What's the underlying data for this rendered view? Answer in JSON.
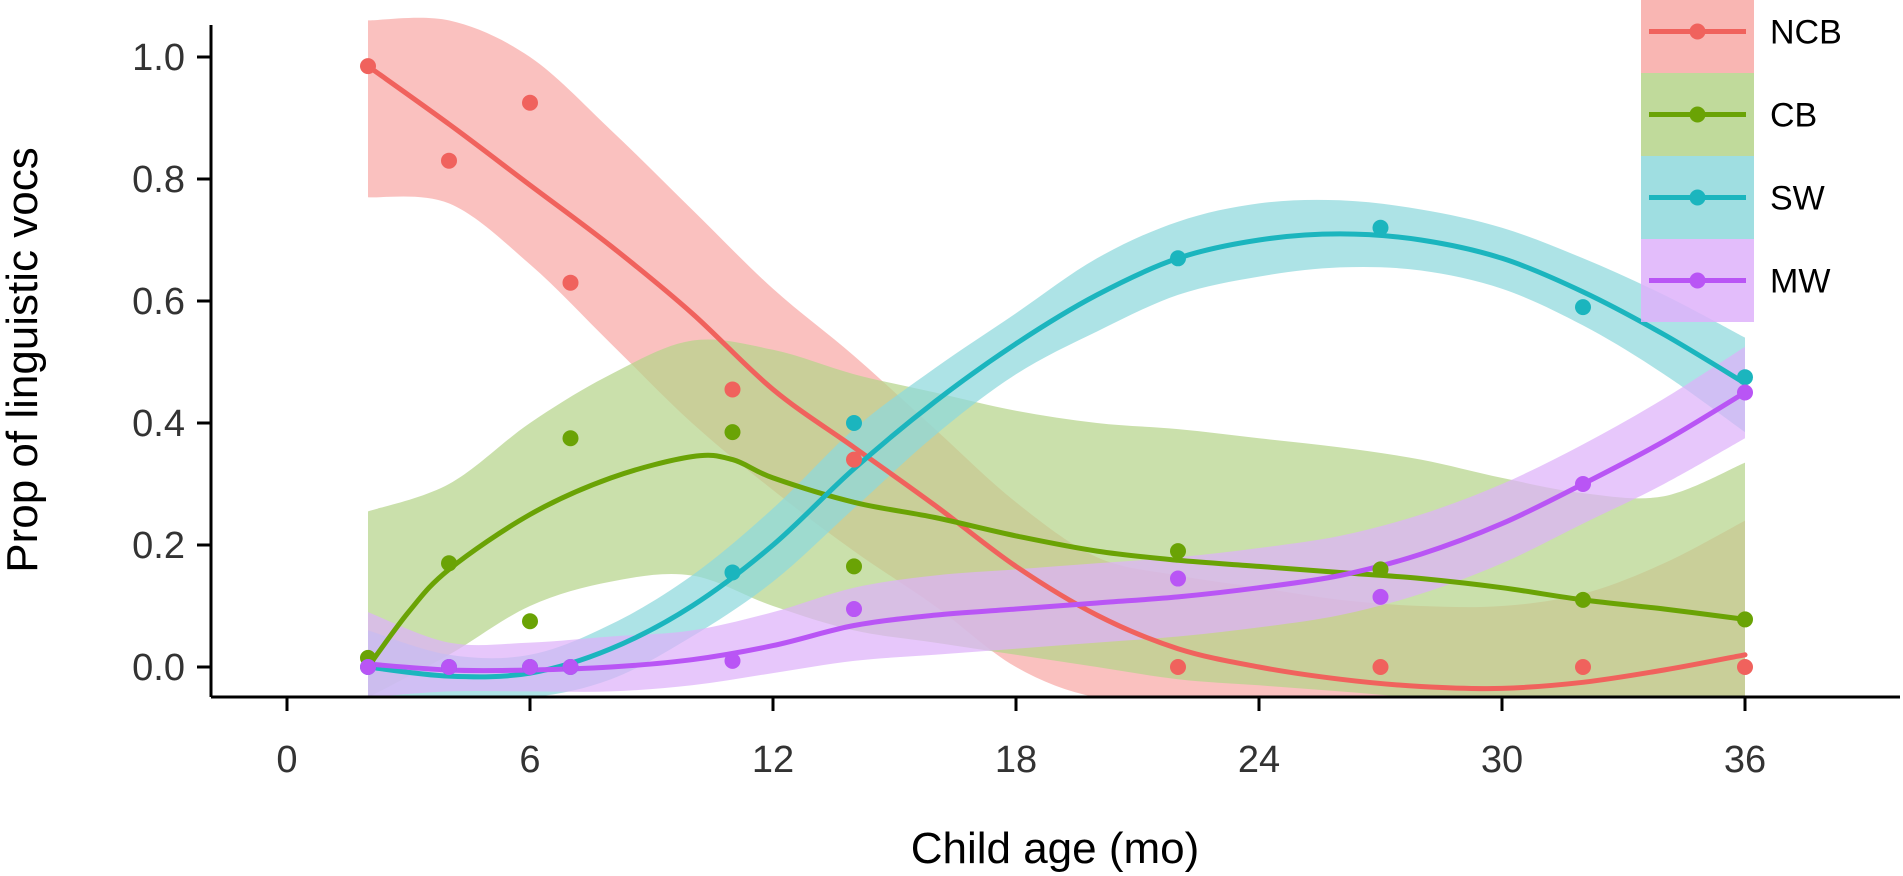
{
  "chart_data": {
    "type": "line",
    "xlabel": "Child age (mo)",
    "ylabel": "Prop of linguistic vocs",
    "xlim": [
      -6,
      40
    ],
    "ylim": [
      -0.05,
      1.05
    ],
    "x_ticks": [
      0,
      6,
      12,
      18,
      24,
      30,
      36
    ],
    "y_ticks": [
      0.0,
      0.2,
      0.4,
      0.6,
      0.8,
      1.0
    ],
    "x_tick_labels": [
      "0",
      "6",
      "12",
      "18",
      "24",
      "30",
      "36"
    ],
    "y_tick_labels": [
      "0.0",
      "0.2",
      "0.4",
      "0.6",
      "0.8",
      "1.0"
    ],
    "grid": false,
    "legend_position": "top-right",
    "series": [
      {
        "name": "NCB",
        "color": "#F0625D",
        "band_color": "#F8A9A6",
        "points": [
          [
            2,
            0.985
          ],
          [
            4,
            0.83
          ],
          [
            6,
            0.925
          ],
          [
            7,
            0.63
          ],
          [
            11,
            0.455
          ],
          [
            14,
            0.34
          ],
          [
            22,
            0.0
          ],
          [
            27,
            0.0
          ],
          [
            32,
            0.0
          ],
          [
            36,
            0.0
          ]
        ],
        "fit": [
          [
            2,
            0.985
          ],
          [
            4,
            0.89
          ],
          [
            6,
            0.79
          ],
          [
            8,
            0.69
          ],
          [
            10,
            0.58
          ],
          [
            12,
            0.455
          ],
          [
            14,
            0.36
          ],
          [
            16,
            0.265
          ],
          [
            18,
            0.165
          ],
          [
            20,
            0.085
          ],
          [
            22,
            0.03
          ],
          [
            24,
            0.0
          ],
          [
            26,
            -0.02
          ],
          [
            28,
            -0.032
          ],
          [
            30,
            -0.035
          ],
          [
            32,
            -0.025
          ],
          [
            34,
            -0.005
          ],
          [
            36,
            0.02
          ]
        ],
        "band_upper": [
          [
            2,
            1.06
          ],
          [
            4,
            1.06
          ],
          [
            6,
            1.0
          ],
          [
            8,
            0.88
          ],
          [
            10,
            0.75
          ],
          [
            12,
            0.62
          ],
          [
            14,
            0.51
          ],
          [
            16,
            0.39
          ],
          [
            18,
            0.27
          ],
          [
            20,
            0.18
          ],
          [
            22,
            0.15
          ],
          [
            24,
            0.13
          ],
          [
            26,
            0.11
          ],
          [
            28,
            0.1
          ],
          [
            30,
            0.1
          ],
          [
            32,
            0.12
          ],
          [
            34,
            0.17
          ],
          [
            36,
            0.24
          ]
        ],
        "band_lower": [
          [
            2,
            0.77
          ],
          [
            4,
            0.76
          ],
          [
            6,
            0.66
          ],
          [
            8,
            0.53
          ],
          [
            10,
            0.4
          ],
          [
            12,
            0.29
          ],
          [
            14,
            0.19
          ],
          [
            16,
            0.1
          ],
          [
            18,
            0.0
          ],
          [
            20,
            -0.05
          ],
          [
            22,
            -0.05
          ],
          [
            24,
            -0.05
          ],
          [
            26,
            -0.05
          ],
          [
            28,
            -0.05
          ],
          [
            30,
            -0.05
          ],
          [
            32,
            -0.05
          ],
          [
            34,
            -0.05
          ],
          [
            36,
            -0.05
          ]
        ]
      },
      {
        "name": "CB",
        "color": "#6AA305",
        "band_color": "#B5D48A",
        "points": [
          [
            2,
            0.015
          ],
          [
            4,
            0.17
          ],
          [
            6,
            0.075
          ],
          [
            7,
            0.375
          ],
          [
            11,
            0.385
          ],
          [
            14,
            0.165
          ],
          [
            22,
            0.19
          ],
          [
            27,
            0.16
          ],
          [
            32,
            0.11
          ],
          [
            36,
            0.078
          ]
        ],
        "fit": [
          [
            2,
            0.0
          ],
          [
            3,
            0.09
          ],
          [
            4,
            0.16
          ],
          [
            6,
            0.25
          ],
          [
            8,
            0.31
          ],
          [
            10,
            0.345
          ],
          [
            11,
            0.34
          ],
          [
            12,
            0.31
          ],
          [
            14,
            0.27
          ],
          [
            16,
            0.245
          ],
          [
            18,
            0.215
          ],
          [
            20,
            0.19
          ],
          [
            22,
            0.175
          ],
          [
            24,
            0.165
          ],
          [
            26,
            0.155
          ],
          [
            28,
            0.145
          ],
          [
            30,
            0.13
          ],
          [
            32,
            0.11
          ],
          [
            34,
            0.095
          ],
          [
            36,
            0.078
          ]
        ],
        "band_upper": [
          [
            2,
            0.255
          ],
          [
            4,
            0.3
          ],
          [
            6,
            0.4
          ],
          [
            8,
            0.48
          ],
          [
            10,
            0.535
          ],
          [
            12,
            0.52
          ],
          [
            14,
            0.48
          ],
          [
            16,
            0.45
          ],
          [
            18,
            0.42
          ],
          [
            20,
            0.4
          ],
          [
            22,
            0.39
          ],
          [
            24,
            0.375
          ],
          [
            26,
            0.36
          ],
          [
            28,
            0.34
          ],
          [
            30,
            0.31
          ],
          [
            32,
            0.285
          ],
          [
            34,
            0.28
          ],
          [
            36,
            0.335
          ]
        ],
        "band_lower": [
          [
            2,
            -0.05
          ],
          [
            4,
            0.02
          ],
          [
            6,
            0.1
          ],
          [
            8,
            0.14
          ],
          [
            10,
            0.15
          ],
          [
            12,
            0.1
          ],
          [
            14,
            0.06
          ],
          [
            16,
            0.04
          ],
          [
            18,
            0.02
          ],
          [
            20,
            0.0
          ],
          [
            22,
            -0.02
          ],
          [
            24,
            -0.03
          ],
          [
            26,
            -0.04
          ],
          [
            28,
            -0.05
          ],
          [
            30,
            -0.05
          ],
          [
            32,
            -0.05
          ],
          [
            34,
            -0.05
          ],
          [
            36,
            -0.05
          ]
        ]
      },
      {
        "name": "SW",
        "color": "#1BB5BE",
        "band_color": "#8ED8DC",
        "points": [
          [
            2,
            0.0
          ],
          [
            4,
            0.0
          ],
          [
            6,
            0.0
          ],
          [
            7,
            0.0
          ],
          [
            11,
            0.155
          ],
          [
            14,
            0.4
          ],
          [
            22,
            0.67
          ],
          [
            27,
            0.72
          ],
          [
            32,
            0.59
          ],
          [
            36,
            0.475
          ]
        ],
        "fit": [
          [
            2,
            0.0
          ],
          [
            4,
            -0.015
          ],
          [
            6,
            -0.01
          ],
          [
            8,
            0.03
          ],
          [
            10,
            0.1
          ],
          [
            12,
            0.2
          ],
          [
            14,
            0.325
          ],
          [
            16,
            0.435
          ],
          [
            18,
            0.53
          ],
          [
            20,
            0.61
          ],
          [
            22,
            0.67
          ],
          [
            24,
            0.7
          ],
          [
            26,
            0.71
          ],
          [
            28,
            0.7
          ],
          [
            30,
            0.67
          ],
          [
            32,
            0.615
          ],
          [
            34,
            0.545
          ],
          [
            36,
            0.465
          ]
        ],
        "band_upper": [
          [
            2,
            0.06
          ],
          [
            4,
            0.02
          ],
          [
            6,
            0.02
          ],
          [
            8,
            0.07
          ],
          [
            10,
            0.15
          ],
          [
            12,
            0.26
          ],
          [
            14,
            0.39
          ],
          [
            16,
            0.49
          ],
          [
            18,
            0.58
          ],
          [
            20,
            0.67
          ],
          [
            22,
            0.73
          ],
          [
            24,
            0.76
          ],
          [
            26,
            0.765
          ],
          [
            28,
            0.75
          ],
          [
            30,
            0.72
          ],
          [
            32,
            0.67
          ],
          [
            34,
            0.61
          ],
          [
            36,
            0.54
          ]
        ],
        "band_lower": [
          [
            2,
            -0.05
          ],
          [
            4,
            -0.05
          ],
          [
            6,
            -0.05
          ],
          [
            8,
            -0.02
          ],
          [
            10,
            0.05
          ],
          [
            12,
            0.14
          ],
          [
            14,
            0.26
          ],
          [
            16,
            0.38
          ],
          [
            18,
            0.48
          ],
          [
            20,
            0.55
          ],
          [
            22,
            0.61
          ],
          [
            24,
            0.64
          ],
          [
            26,
            0.655
          ],
          [
            28,
            0.65
          ],
          [
            30,
            0.62
          ],
          [
            32,
            0.56
          ],
          [
            34,
            0.48
          ],
          [
            36,
            0.385
          ]
        ]
      },
      {
        "name": "MW",
        "color": "#B955F5",
        "band_color": "#DEB2FA",
        "points": [
          [
            2,
            0.0
          ],
          [
            4,
            0.0
          ],
          [
            6,
            0.0
          ],
          [
            7,
            0.0
          ],
          [
            11,
            0.01
          ],
          [
            14,
            0.095
          ],
          [
            22,
            0.145
          ],
          [
            27,
            0.115
          ],
          [
            32,
            0.3
          ],
          [
            36,
            0.45
          ]
        ],
        "fit": [
          [
            2,
            0.005
          ],
          [
            4,
            -0.005
          ],
          [
            6,
            -0.005
          ],
          [
            8,
            0.0
          ],
          [
            10,
            0.012
          ],
          [
            12,
            0.035
          ],
          [
            14,
            0.068
          ],
          [
            16,
            0.085
          ],
          [
            18,
            0.095
          ],
          [
            20,
            0.105
          ],
          [
            22,
            0.115
          ],
          [
            24,
            0.13
          ],
          [
            26,
            0.15
          ],
          [
            28,
            0.185
          ],
          [
            30,
            0.235
          ],
          [
            32,
            0.3
          ],
          [
            34,
            0.37
          ],
          [
            36,
            0.45
          ]
        ],
        "band_upper": [
          [
            2,
            0.09
          ],
          [
            4,
            0.04
          ],
          [
            6,
            0.04
          ],
          [
            8,
            0.05
          ],
          [
            10,
            0.06
          ],
          [
            12,
            0.09
          ],
          [
            14,
            0.13
          ],
          [
            16,
            0.15
          ],
          [
            18,
            0.16
          ],
          [
            20,
            0.17
          ],
          [
            22,
            0.18
          ],
          [
            24,
            0.195
          ],
          [
            26,
            0.215
          ],
          [
            28,
            0.25
          ],
          [
            30,
            0.3
          ],
          [
            32,
            0.365
          ],
          [
            34,
            0.44
          ],
          [
            36,
            0.525
          ]
        ],
        "band_lower": [
          [
            2,
            -0.05
          ],
          [
            4,
            -0.04
          ],
          [
            6,
            -0.04
          ],
          [
            8,
            -0.04
          ],
          [
            10,
            -0.03
          ],
          [
            12,
            -0.01
          ],
          [
            14,
            0.01
          ],
          [
            16,
            0.02
          ],
          [
            18,
            0.03
          ],
          [
            20,
            0.04
          ],
          [
            22,
            0.05
          ],
          [
            24,
            0.065
          ],
          [
            26,
            0.085
          ],
          [
            28,
            0.12
          ],
          [
            30,
            0.17
          ],
          [
            32,
            0.235
          ],
          [
            34,
            0.3
          ],
          [
            36,
            0.375
          ]
        ]
      }
    ]
  }
}
